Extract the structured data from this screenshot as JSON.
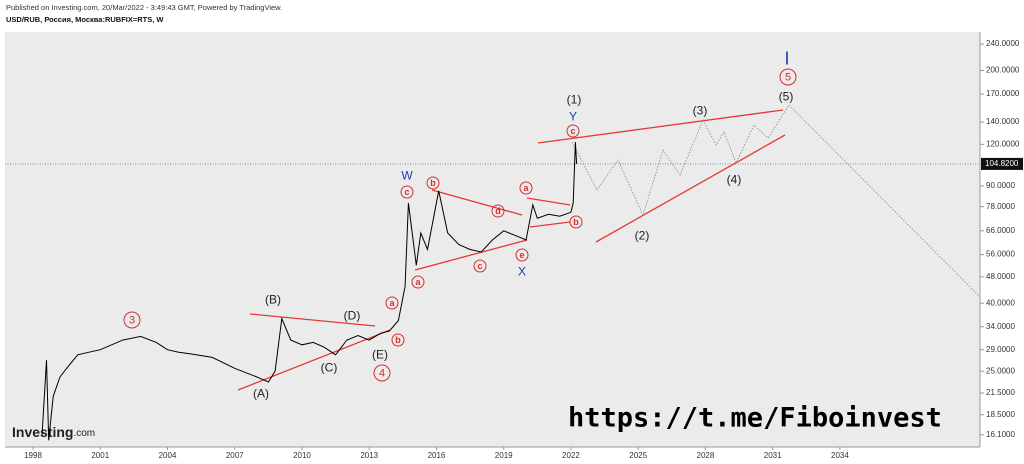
{
  "header": {
    "published": "Published on Investing.com, 20/Mar/2022 - 3:49:43 GMT, Powered by TradingView.",
    "symbol": "USD/RUB, Россия, Москва:RUBFIX=RTS, W"
  },
  "logo": {
    "brand": "Investing",
    "suffix": ".com"
  },
  "watermark": "https://t.me/Fiboinvest",
  "chart_data": {
    "type": "line",
    "log_scale": true,
    "grid": false,
    "x": [
      1998.4,
      1998.6,
      1998.7,
      1998.9,
      1999.2,
      1999.6,
      2000.0,
      2000.5,
      2001.0,
      2002.0,
      2002.8,
      2003.5,
      2004.0,
      2004.5,
      2005.0,
      2006.0,
      2007.0,
      2008.0,
      2008.5,
      2008.8,
      2009.1,
      2009.5,
      2010.0,
      2010.5,
      2011.0,
      2011.5,
      2012.0,
      2012.5,
      2013.0,
      2013.5,
      2013.9,
      2014.3,
      2014.6,
      2014.75,
      2015.1,
      2015.3,
      2015.6,
      2016.1,
      2016.5,
      2017.0,
      2017.5,
      2018.0,
      2018.5,
      2019.0,
      2019.5,
      2020.0,
      2020.3,
      2020.5,
      2021.0,
      2021.5,
      2022.0,
      2022.1,
      2022.2,
      2022.25
    ],
    "series": [
      {
        "name": "USD/RUB",
        "color": "#000000",
        "values": [
          16.0,
          27,
          15.5,
          21,
          24,
          26,
          28,
          28.5,
          29,
          31,
          31.8,
          30.5,
          29,
          28.5,
          28.2,
          27.5,
          25.5,
          24,
          23.2,
          25,
          36,
          31,
          30,
          30.5,
          29.5,
          28,
          31,
          32,
          31,
          32.5,
          33,
          35.5,
          45,
          80,
          52,
          65,
          58,
          87,
          65,
          60,
          58,
          57,
          62,
          66,
          64,
          62,
          79,
          72,
          74,
          73,
          75,
          80,
          122,
          104.82
        ]
      }
    ],
    "current_price": {
      "value": 104.82,
      "label": "104.8200"
    },
    "xlim": [
      1996.75,
      2040.25
    ],
    "xticks": [
      1998,
      2001,
      2004,
      2007,
      2010,
      2013,
      2016,
      2019,
      2022,
      2025,
      2028,
      2031,
      2034
    ],
    "ylim": [
      14.8,
      261
    ],
    "yticks": [
      {
        "value": 240,
        "label": "240.0000"
      },
      {
        "value": 200,
        "label": "200.0000"
      },
      {
        "value": 170,
        "label": "170.0000"
      },
      {
        "value": 140,
        "label": "140.0000"
      },
      {
        "value": 120,
        "label": "120.0000"
      },
      {
        "value": 90,
        "label": "90.0000"
      },
      {
        "value": 78,
        "label": "78.0000"
      },
      {
        "value": 66,
        "label": "66.0000"
      },
      {
        "value": 56,
        "label": "56.0000"
      },
      {
        "value": 48,
        "label": "48.0000"
      },
      {
        "value": 40,
        "label": "40.0000"
      },
      {
        "value": 34,
        "label": "34.0000"
      },
      {
        "value": 29,
        "label": "29.0000"
      },
      {
        "value": 25,
        "label": "25.0000"
      },
      {
        "value": 21.5,
        "label": "21.5000"
      },
      {
        "value": 18.5,
        "label": "18.5000"
      },
      {
        "value": 16.1,
        "label": "16.1000"
      }
    ],
    "annotations": [
      {
        "text": "3",
        "color": "#d32f2f",
        "circled": true
      },
      {
        "text": "4",
        "color": "#d32f2f",
        "circled": true
      },
      {
        "text": "5",
        "color": "#d32f2f",
        "circled": true
      },
      {
        "text": "c",
        "color": "#d32f2f",
        "circled": true
      },
      {
        "text": "b",
        "color": "#d32f2f",
        "circled": true
      },
      {
        "text": "d",
        "color": "#d32f2f",
        "circled": true
      },
      {
        "text": "e",
        "color": "#d32f2f",
        "circled": true
      },
      {
        "text": "c",
        "color": "#d32f2f",
        "circled": true
      },
      {
        "text": "a",
        "color": "#d32f2f",
        "circled": true
      },
      {
        "text": "a",
        "color": "#d32f2f",
        "circled": true
      },
      {
        "text": "b",
        "color": "#d32f2f",
        "circled": true
      },
      {
        "text": "a",
        "color": "#d32f2f",
        "circled": true
      },
      {
        "text": "b",
        "color": "#d32f2f",
        "circled": true
      },
      {
        "text": "c",
        "color": "#d32f2f",
        "circled": true
      },
      {
        "text": "(1)",
        "color": "#222222",
        "circled": false
      },
      {
        "text": "(2)",
        "color": "#222222",
        "circled": false
      },
      {
        "text": "(3)",
        "color": "#222222",
        "circled": false
      },
      {
        "text": "(4)",
        "color": "#222222",
        "circled": false
      },
      {
        "text": "(5)",
        "color": "#222222",
        "circled": false
      },
      {
        "text": "(A)",
        "color": "#222222",
        "circled": false
      },
      {
        "text": "(B)",
        "color": "#222222",
        "circled": false
      },
      {
        "text": "(C)",
        "color": "#222222",
        "circled": false
      },
      {
        "text": "(D)",
        "color": "#222222",
        "circled": false
      },
      {
        "text": "(E)",
        "color": "#222222",
        "circled": false
      },
      {
        "text": "W",
        "color": "#1a3fb5",
        "circled": false
      },
      {
        "text": "X",
        "color": "#1a3fb5",
        "circled": false
      },
      {
        "text": "Y",
        "color": "#1a3fb5",
        "circled": false
      },
      {
        "text": "I",
        "color": "#1a3fb5",
        "circled": false
      }
    ]
  }
}
